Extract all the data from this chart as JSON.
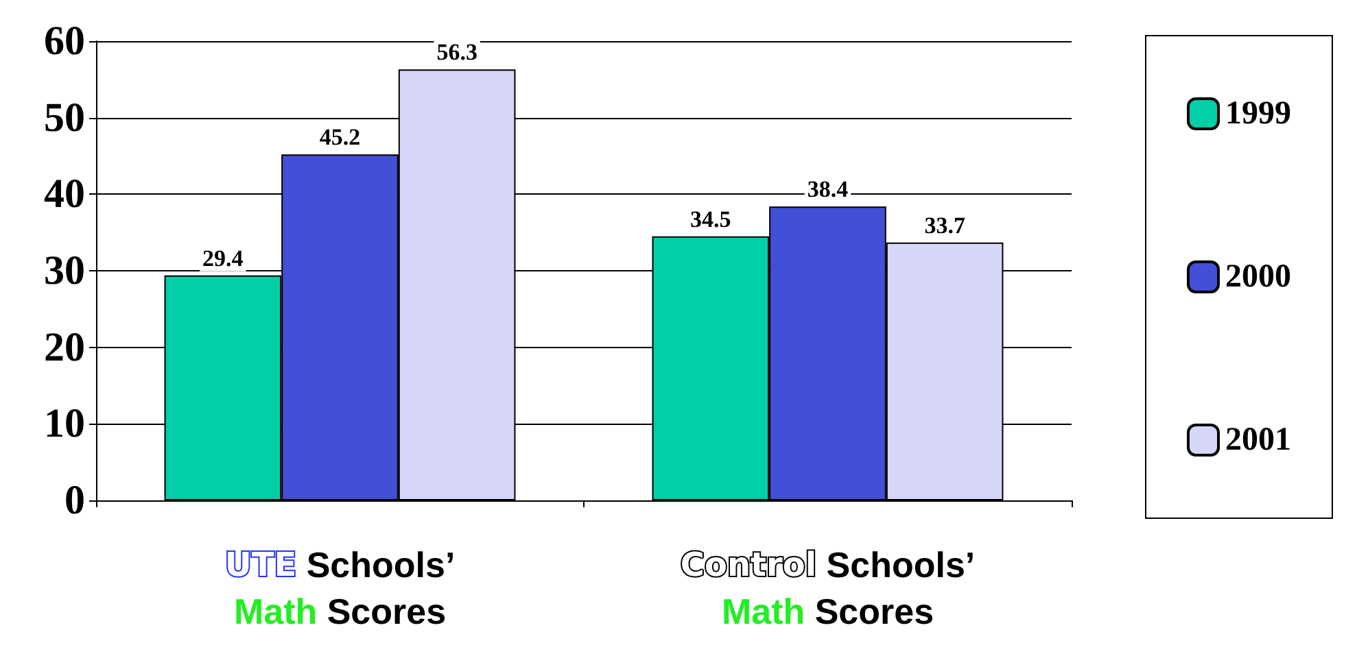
{
  "chart_data": {
    "type": "bar",
    "categories": [
      "UTE Schools’ Math Scores",
      "Control Schools’ Math Scores"
    ],
    "series": [
      {
        "name": "1999",
        "color": "#00cfa8",
        "values": [
          29.4,
          34.5
        ]
      },
      {
        "name": "2000",
        "color": "#444fd8",
        "values": [
          45.2,
          38.4
        ]
      },
      {
        "name": "2001",
        "color": "#d6d6fa",
        "values": [
          56.3,
          33.7
        ]
      }
    ],
    "ylim": [
      0,
      60
    ],
    "yticks": [
      0,
      10,
      20,
      30,
      40,
      50,
      60
    ],
    "grid": "y",
    "legend": "right",
    "data_labels": true
  }
}
